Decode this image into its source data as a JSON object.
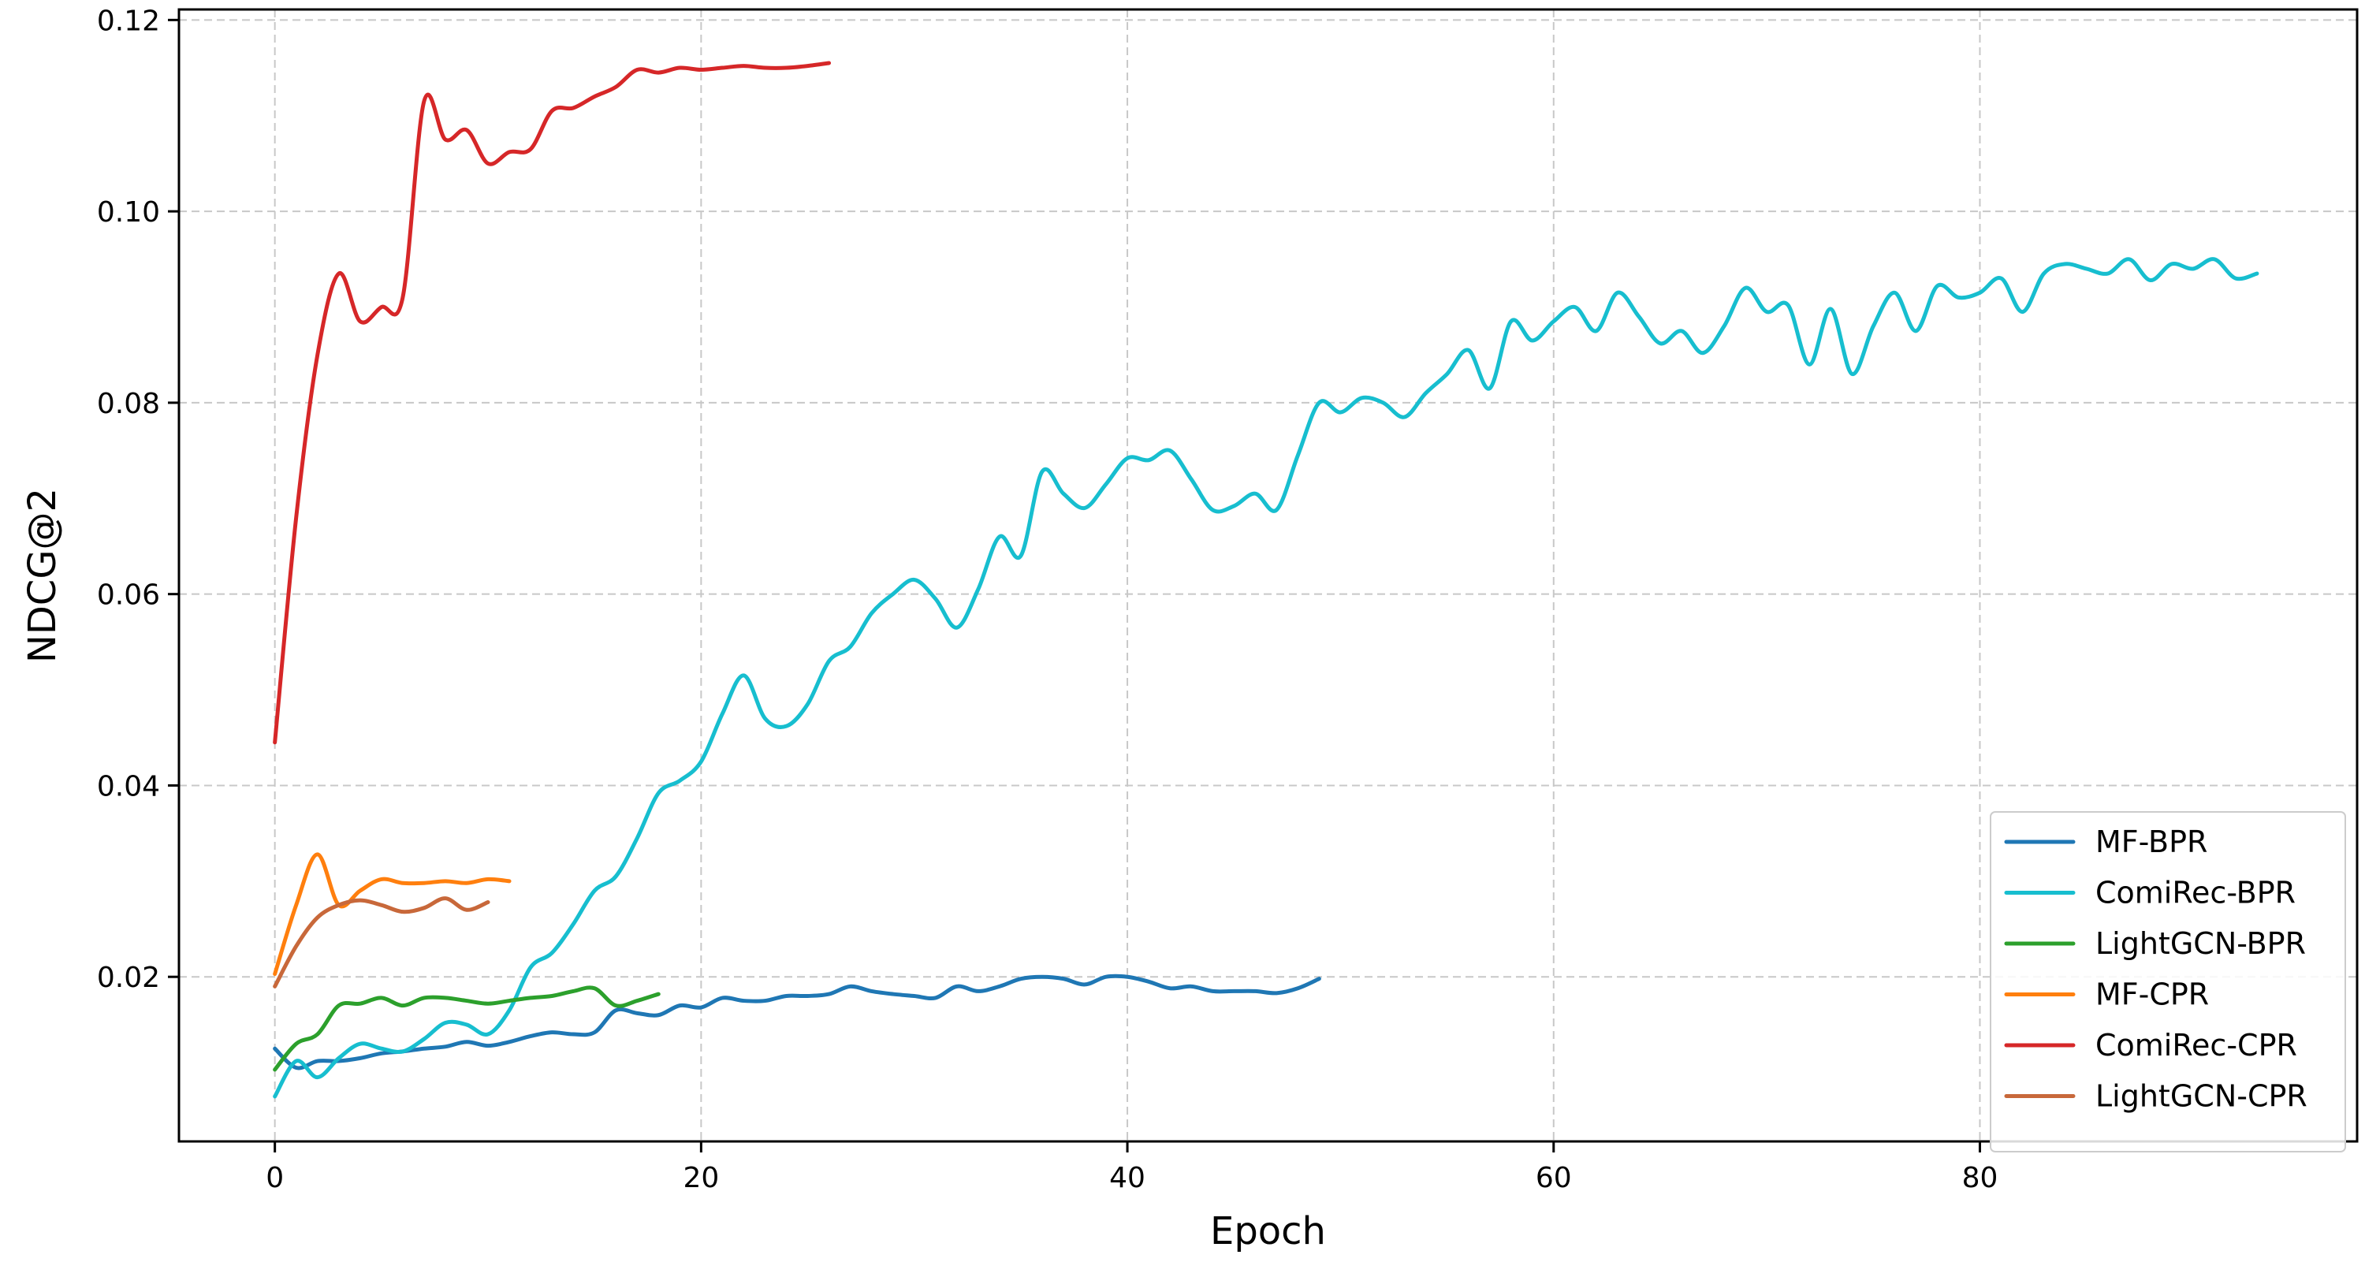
{
  "chart_data": {
    "type": "line",
    "title": "",
    "xlabel": "Epoch",
    "ylabel": "NDCG@2",
    "xlim": [
      -4.5,
      97.7
    ],
    "ylim": [
      0.0028,
      0.1211
    ],
    "xticks": [
      0,
      20,
      40,
      60,
      80
    ],
    "xtick_labels": [
      "0",
      "20",
      "40",
      "60",
      "80"
    ],
    "yticks": [
      0.02,
      0.04,
      0.06,
      0.08,
      0.1,
      0.12
    ],
    "ytick_labels": [
      "0.02",
      "0.04",
      "0.06",
      "0.08",
      "0.10",
      "0.12"
    ],
    "grid": true,
    "legend_position": "lower-right",
    "series": [
      {
        "name": "MF-BPR",
        "color": "#1f77b4",
        "x": [
          0,
          1,
          2,
          3,
          4,
          5,
          6,
          7,
          8,
          9,
          10,
          11,
          12,
          13,
          14,
          15,
          16,
          17,
          18,
          19,
          20,
          21,
          22,
          23,
          24,
          25,
          26,
          27,
          28,
          29,
          30,
          31,
          32,
          33,
          34,
          35,
          36,
          37,
          38,
          39,
          40,
          41,
          42,
          43,
          44,
          45,
          46,
          47,
          48,
          49
        ],
        "y": [
          0.0125,
          0.0105,
          0.0112,
          0.0112,
          0.0115,
          0.012,
          0.0122,
          0.0125,
          0.0127,
          0.0132,
          0.0128,
          0.0132,
          0.0138,
          0.0142,
          0.014,
          0.0142,
          0.0165,
          0.0162,
          0.016,
          0.017,
          0.0168,
          0.0178,
          0.0175,
          0.0175,
          0.018,
          0.018,
          0.0182,
          0.019,
          0.0185,
          0.0182,
          0.018,
          0.0178,
          0.019,
          0.0185,
          0.019,
          0.0198,
          0.02,
          0.0198,
          0.0192,
          0.02,
          0.02,
          0.0195,
          0.0188,
          0.019,
          0.0185,
          0.0185,
          0.0185,
          0.0183,
          0.0188,
          0.0198
        ]
      },
      {
        "name": "ComiRec-BPR",
        "color": "#17becf",
        "x": [
          0,
          1,
          2,
          3,
          4,
          5,
          6,
          7,
          8,
          9,
          10,
          11,
          12,
          13,
          14,
          15,
          16,
          17,
          18,
          19,
          20,
          21,
          22,
          23,
          24,
          25,
          26,
          27,
          28,
          29,
          30,
          31,
          32,
          33,
          34,
          35,
          36,
          37,
          38,
          39,
          40,
          41,
          42,
          43,
          44,
          45,
          46,
          47,
          48,
          49,
          50,
          51,
          52,
          53,
          54,
          55,
          56,
          57,
          58,
          59,
          60,
          61,
          62,
          63,
          64,
          65,
          66,
          67,
          68,
          69,
          70,
          71,
          72,
          73,
          74,
          75,
          76,
          77,
          78,
          79,
          80,
          81,
          82,
          83,
          84,
          85,
          86,
          87,
          88,
          89,
          90,
          91,
          92,
          93
        ],
        "y": [
          0.0075,
          0.0112,
          0.0095,
          0.0115,
          0.013,
          0.0125,
          0.0122,
          0.0135,
          0.0152,
          0.015,
          0.014,
          0.0165,
          0.021,
          0.0225,
          0.0255,
          0.029,
          0.0305,
          0.0345,
          0.0392,
          0.0405,
          0.0425,
          0.0475,
          0.0515,
          0.047,
          0.0462,
          0.0485,
          0.053,
          0.0545,
          0.058,
          0.06,
          0.0615,
          0.0595,
          0.0565,
          0.0605,
          0.066,
          0.064,
          0.0728,
          0.0705,
          0.069,
          0.0715,
          0.0742,
          0.074,
          0.075,
          0.072,
          0.0688,
          0.0692,
          0.0705,
          0.0688,
          0.0745,
          0.08,
          0.079,
          0.0805,
          0.08,
          0.0785,
          0.081,
          0.083,
          0.0855,
          0.0815,
          0.0885,
          0.0865,
          0.0885,
          0.09,
          0.0875,
          0.0915,
          0.089,
          0.0862,
          0.0875,
          0.0852,
          0.088,
          0.092,
          0.0895,
          0.0902,
          0.084,
          0.0898,
          0.083,
          0.088,
          0.0915,
          0.0875,
          0.0922,
          0.091,
          0.0915,
          0.093,
          0.0895,
          0.0935,
          0.0945,
          0.094,
          0.0935,
          0.095,
          0.0928,
          0.0945,
          0.094,
          0.095,
          0.093,
          0.0935
        ]
      },
      {
        "name": "LightGCN-BPR",
        "color": "#2ca02c",
        "x": [
          0,
          1,
          2,
          3,
          4,
          5,
          6,
          7,
          8,
          9,
          10,
          11,
          12,
          13,
          14,
          15,
          16,
          17,
          18
        ],
        "y": [
          0.0103,
          0.013,
          0.014,
          0.017,
          0.0172,
          0.0178,
          0.017,
          0.0178,
          0.0178,
          0.0175,
          0.0172,
          0.0175,
          0.0178,
          0.018,
          0.0185,
          0.0188,
          0.017,
          0.0175,
          0.0182
        ]
      },
      {
        "name": "MF-CPR",
        "color": "#ff7f0e",
        "x": [
          0,
          1,
          2,
          3,
          4,
          5,
          6,
          7,
          8,
          9,
          10,
          11
        ],
        "y": [
          0.0203,
          0.0275,
          0.0328,
          0.0275,
          0.029,
          0.0302,
          0.0298,
          0.0298,
          0.03,
          0.0298,
          0.0302,
          0.03
        ]
      },
      {
        "name": "ComiRec-CPR",
        "color": "#d62728",
        "x": [
          0,
          1,
          2,
          3,
          4,
          5,
          6,
          7,
          8,
          9,
          10,
          11,
          12,
          13,
          14,
          15,
          16,
          17,
          18,
          19,
          20,
          21,
          22,
          23,
          24,
          25,
          26
        ],
        "y": [
          0.0445,
          0.068,
          0.085,
          0.0935,
          0.0885,
          0.09,
          0.091,
          0.1115,
          0.1075,
          0.1085,
          0.105,
          0.1062,
          0.1065,
          0.1105,
          0.1108,
          0.112,
          0.113,
          0.1148,
          0.1145,
          0.115,
          0.1148,
          0.115,
          0.1152,
          0.115,
          0.115,
          0.1152,
          0.1155
        ]
      },
      {
        "name": "LightGCN-CPR",
        "color": "#c8683a",
        "x": [
          0,
          1,
          2,
          3,
          4,
          5,
          6,
          7,
          8,
          9,
          10
        ],
        "y": [
          0.019,
          0.0232,
          0.0262,
          0.0275,
          0.028,
          0.0275,
          0.0268,
          0.0272,
          0.0282,
          0.027,
          0.0278
        ]
      }
    ]
  }
}
